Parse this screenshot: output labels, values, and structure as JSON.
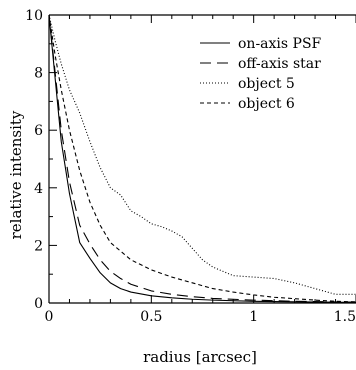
{
  "chart_data": {
    "type": "line",
    "title": "",
    "xlabel": "radius [arcsec]",
    "ylabel": "relative intensity",
    "xlim": [
      0,
      1.5
    ],
    "ylim": [
      0,
      10
    ],
    "xticks": [
      0,
      0.5,
      1,
      1.5
    ],
    "xtick_labels": [
      "0",
      "0.5",
      "1",
      "1.5"
    ],
    "yticks": [
      0,
      2,
      4,
      6,
      8,
      10
    ],
    "ytick_labels": [
      "0",
      "2",
      "4",
      "6",
      "8",
      "10"
    ],
    "grid": false,
    "legend_position": "top-right",
    "series": [
      {
        "name": "on-axis PSF",
        "style": "solid",
        "color": "#000000",
        "x": [
          0,
          0.03,
          0.06,
          0.1,
          0.15,
          0.2,
          0.25,
          0.3,
          0.35,
          0.4,
          0.5,
          0.6,
          0.7,
          0.8,
          1.0,
          1.2,
          1.5
        ],
        "y": [
          10,
          7.8,
          5.6,
          3.8,
          2.1,
          1.55,
          1.05,
          0.7,
          0.5,
          0.38,
          0.25,
          0.18,
          0.13,
          0.1,
          0.06,
          0.04,
          0.02
        ]
      },
      {
        "name": "off-axis star",
        "style": "longdash",
        "color": "#000000",
        "x": [
          0,
          0.03,
          0.06,
          0.1,
          0.15,
          0.2,
          0.25,
          0.3,
          0.35,
          0.4,
          0.5,
          0.6,
          0.7,
          0.8,
          1.0,
          1.2,
          1.5
        ],
        "y": [
          10,
          8.0,
          6.0,
          4.2,
          2.7,
          2.05,
          1.5,
          1.1,
          0.85,
          0.65,
          0.42,
          0.3,
          0.22,
          0.16,
          0.1,
          0.06,
          0.03
        ]
      },
      {
        "name": "object 5",
        "style": "dotted",
        "color": "#000000",
        "x": [
          0,
          0.03,
          0.06,
          0.1,
          0.15,
          0.2,
          0.25,
          0.3,
          0.35,
          0.4,
          0.45,
          0.5,
          0.55,
          0.6,
          0.65,
          0.7,
          0.75,
          0.8,
          0.85,
          0.9,
          1.0,
          1.1,
          1.2,
          1.3,
          1.4,
          1.5
        ],
        "y": [
          10,
          9.1,
          8.3,
          7.4,
          6.6,
          5.6,
          4.7,
          4.0,
          3.75,
          3.2,
          3.0,
          2.75,
          2.65,
          2.5,
          2.3,
          1.9,
          1.5,
          1.25,
          1.1,
          0.95,
          0.9,
          0.85,
          0.7,
          0.5,
          0.3,
          0.3
        ]
      },
      {
        "name": "object 6",
        "style": "shortdash",
        "color": "#000000",
        "x": [
          0,
          0.03,
          0.06,
          0.1,
          0.15,
          0.2,
          0.25,
          0.3,
          0.35,
          0.4,
          0.5,
          0.6,
          0.7,
          0.8,
          0.9,
          1.0,
          1.1,
          1.2,
          1.3,
          1.4,
          1.5
        ],
        "y": [
          10,
          8.6,
          7.4,
          6.0,
          4.6,
          3.5,
          2.7,
          2.1,
          1.8,
          1.5,
          1.15,
          0.9,
          0.7,
          0.5,
          0.38,
          0.28,
          0.2,
          0.15,
          0.1,
          0.06,
          0.04
        ]
      }
    ]
  }
}
